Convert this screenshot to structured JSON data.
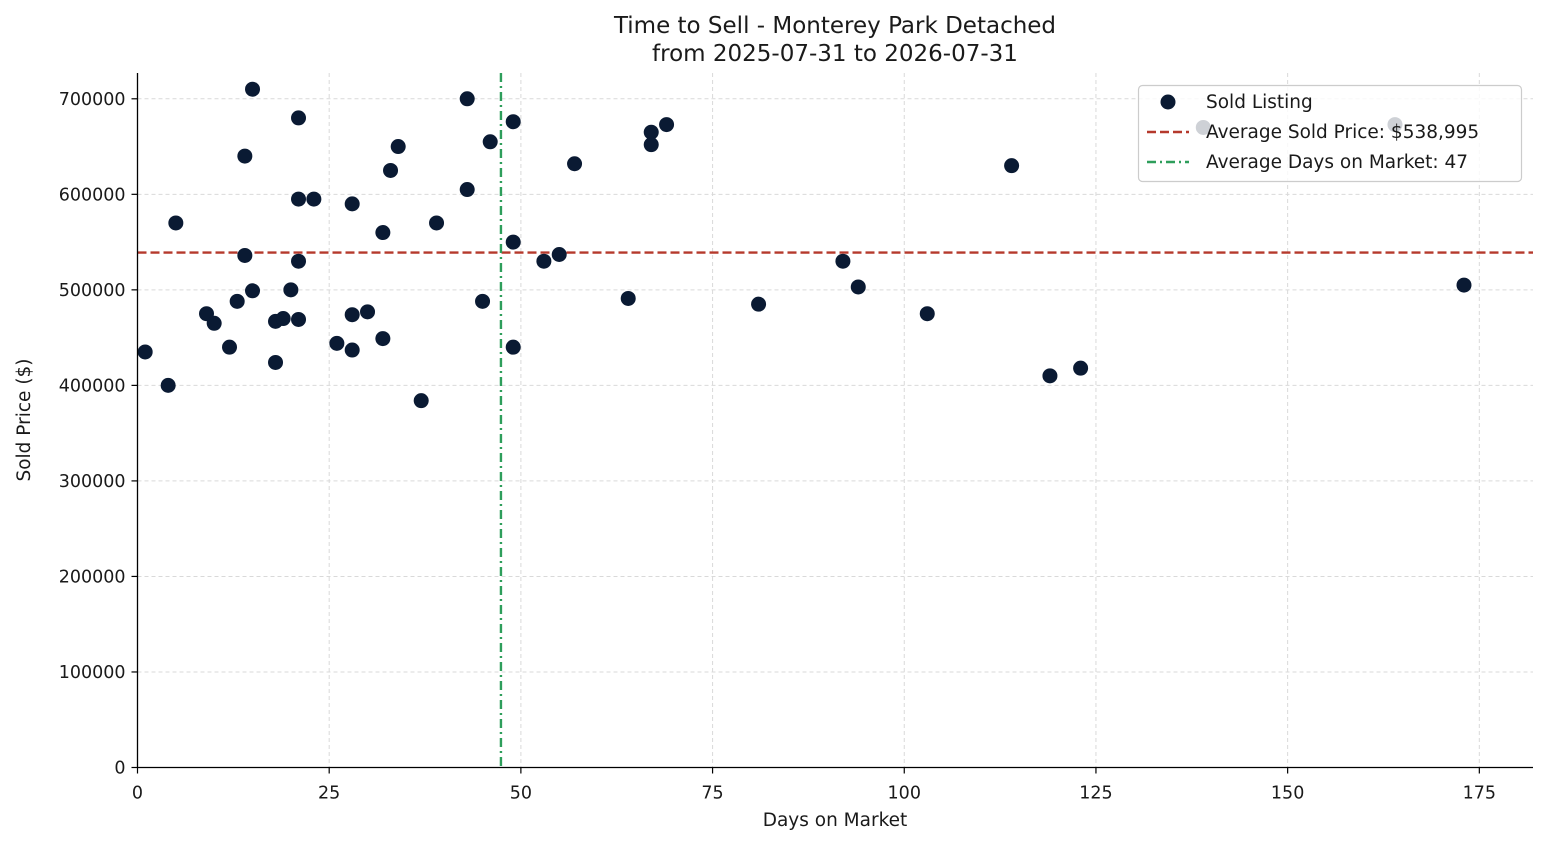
{
  "chart_data": {
    "type": "scatter",
    "title": "Time to Sell - Monterey Park Detached",
    "subtitle": "from 2025-07-31 to 2026-07-31",
    "xlabel": "Days on Market",
    "ylabel": "Sold Price ($)",
    "xlim": [
      0,
      182
    ],
    "ylim": [
      0,
      727000
    ],
    "xticks": [
      0,
      25,
      50,
      75,
      100,
      125,
      150,
      175
    ],
    "yticks": [
      0,
      100000,
      200000,
      300000,
      400000,
      500000,
      600000,
      700000
    ],
    "grid": true,
    "legend_position": "top-right",
    "colors": {
      "points": "#0a1a33",
      "avg_price_line": "#b5392c",
      "avg_days_line": "#2e9e5b",
      "grid": "#d9d9d9",
      "axis": "#000000"
    },
    "series": [
      {
        "name": "Sold Listing",
        "points": [
          [
            1,
            435000
          ],
          [
            4,
            400000
          ],
          [
            5,
            570000
          ],
          [
            9,
            475000
          ],
          [
            10,
            465000
          ],
          [
            12,
            440000
          ],
          [
            13,
            488000
          ],
          [
            14,
            640000
          ],
          [
            14,
            536000
          ],
          [
            15,
            710000
          ],
          [
            15,
            499000
          ],
          [
            18,
            467000
          ],
          [
            18,
            424000
          ],
          [
            19,
            470000
          ],
          [
            20,
            500000
          ],
          [
            21,
            680000
          ],
          [
            21,
            595000
          ],
          [
            21,
            530000
          ],
          [
            21,
            469000
          ],
          [
            23,
            595000
          ],
          [
            26,
            444000
          ],
          [
            28,
            590000
          ],
          [
            28,
            474000
          ],
          [
            28,
            437000
          ],
          [
            30,
            477000
          ],
          [
            32,
            560000
          ],
          [
            32,
            449000
          ],
          [
            33,
            625000
          ],
          [
            34,
            650000
          ],
          [
            37,
            384000
          ],
          [
            39,
            570000
          ],
          [
            43,
            700000
          ],
          [
            43,
            605000
          ],
          [
            45,
            488000
          ],
          [
            46,
            655000
          ],
          [
            49,
            676000
          ],
          [
            49,
            550000
          ],
          [
            49,
            440000
          ],
          [
            53,
            530000
          ],
          [
            55,
            537000
          ],
          [
            57,
            632000
          ],
          [
            64,
            491000
          ],
          [
            67,
            665000
          ],
          [
            67,
            652000
          ],
          [
            69,
            673000
          ],
          [
            81,
            485000
          ],
          [
            92,
            530000
          ],
          [
            94,
            503000
          ],
          [
            103,
            475000
          ],
          [
            114,
            630000
          ],
          [
            119,
            410000
          ],
          [
            123,
            418000
          ],
          [
            139,
            670000
          ],
          [
            164,
            673000
          ],
          [
            173,
            505000
          ]
        ]
      }
    ],
    "reference_lines": {
      "avg_price": {
        "label": "Average Sold Price: $538,995",
        "value": 538995
      },
      "avg_days": {
        "label": "Average Days on Market: 47",
        "value": 47.4
      }
    }
  }
}
